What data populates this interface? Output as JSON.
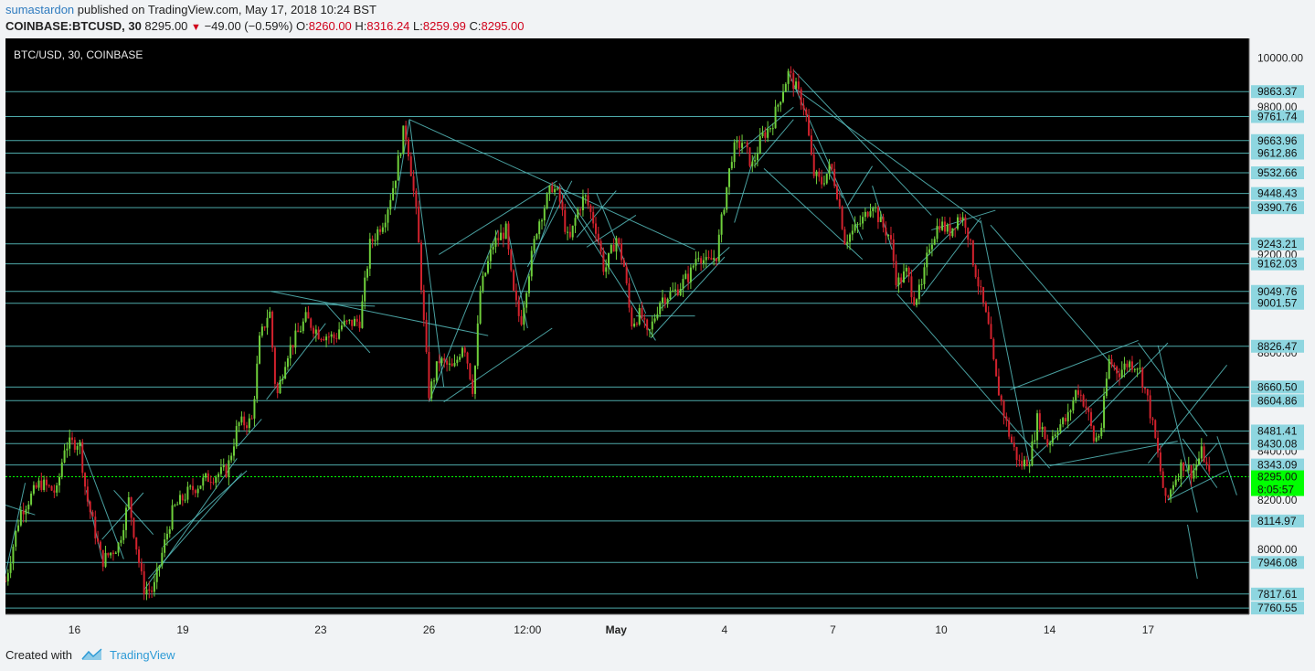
{
  "header": {
    "user": "sumastardon",
    "published_text": " published on TradingView.com, May 17, 2018 10:24 BST",
    "symbol": "COINBASE:BTCUSD, 30",
    "price": "8295.00",
    "change": "−49.00 (−0.59%)",
    "o_label": "O:",
    "o_value": "8260.00",
    "h_label": "H:",
    "h_value": "8316.24",
    "l_label": "L:",
    "l_value": "8259.99",
    "c_label": "C:",
    "c_value": "8295.00"
  },
  "footer": {
    "created_with": "Created with",
    "brand": "TradingView"
  },
  "colors": {
    "background": "#000000",
    "up": "#6fcf3b",
    "down": "#d2222d",
    "lines": "#5cc8c8",
    "last_price": "#00ff00",
    "label_bg": "#8ed6e0"
  },
  "chart_data": {
    "type": "candlestick",
    "title": "BTC/USD, 30, COINBASE",
    "ylim": [
      7700,
      10100
    ],
    "y_ticks": [
      "10000.00",
      "9800.00",
      "9200.00",
      "8800.00",
      "8400.00",
      "8200.00",
      "8000.00"
    ],
    "x_ticks": [
      {
        "t": 0.07,
        "label": "16"
      },
      {
        "t": 0.18,
        "label": "19"
      },
      {
        "t": 0.32,
        "label": "23"
      },
      {
        "t": 0.43,
        "label": "26"
      },
      {
        "t": 0.53,
        "label": "12:00"
      },
      {
        "t": 0.62,
        "label": "May"
      },
      {
        "t": 0.73,
        "label": "4"
      },
      {
        "t": 0.84,
        "label": "7"
      },
      {
        "t": 0.95,
        "label": "10"
      },
      {
        "t": 1.06,
        "label": "14"
      },
      {
        "t": 1.16,
        "label": "17"
      }
    ],
    "horizontal_levels": [
      "9863.37",
      "9761.74",
      "9663.96",
      "9612.86",
      "9532.66",
      "9448.43",
      "9390.76",
      "9243.21",
      "9162.03",
      "9049.76",
      "9001.57",
      "8826.47",
      "8660.50",
      "8604.86",
      "8481.41",
      "8430.08",
      "8343.09",
      "8114.97",
      "7946.08",
      "7817.61",
      "7760.55"
    ],
    "last_price": "8295.00",
    "countdown": "8:05:57",
    "price_path": [
      [
        0.0,
        7870
      ],
      [
        0.015,
        8150
      ],
      [
        0.035,
        8270
      ],
      [
        0.052,
        8230
      ],
      [
        0.06,
        8420
      ],
      [
        0.075,
        8440
      ],
      [
        0.082,
        8220
      ],
      [
        0.098,
        7950
      ],
      [
        0.115,
        8020
      ],
      [
        0.125,
        8200
      ],
      [
        0.14,
        7840
      ],
      [
        0.15,
        7830
      ],
      [
        0.16,
        8000
      ],
      [
        0.17,
        8160
      ],
      [
        0.185,
        8230
      ],
      [
        0.205,
        8290
      ],
      [
        0.225,
        8320
      ],
      [
        0.236,
        8510
      ],
      [
        0.25,
        8520
      ],
      [
        0.258,
        8850
      ],
      [
        0.268,
        8980
      ],
      [
        0.275,
        8610
      ],
      [
        0.285,
        8790
      ],
      [
        0.305,
        8940
      ],
      [
        0.318,
        8880
      ],
      [
        0.335,
        8860
      ],
      [
        0.34,
        8910
      ],
      [
        0.36,
        8930
      ],
      [
        0.37,
        9240
      ],
      [
        0.385,
        9350
      ],
      [
        0.395,
        9500
      ],
      [
        0.405,
        9720
      ],
      [
        0.41,
        9600
      ],
      [
        0.418,
        9330
      ],
      [
        0.425,
        8900
      ],
      [
        0.43,
        8630
      ],
      [
        0.44,
        8770
      ],
      [
        0.455,
        8730
      ],
      [
        0.465,
        8850
      ],
      [
        0.475,
        8640
      ],
      [
        0.482,
        9050
      ],
      [
        0.495,
        9240
      ],
      [
        0.508,
        9300
      ],
      [
        0.515,
        9050
      ],
      [
        0.523,
        8920
      ],
      [
        0.53,
        9100
      ],
      [
        0.54,
        9320
      ],
      [
        0.555,
        9480
      ],
      [
        0.562,
        9430
      ],
      [
        0.572,
        9240
      ],
      [
        0.58,
        9370
      ],
      [
        0.588,
        9440
      ],
      [
        0.6,
        9300
      ],
      [
        0.608,
        9130
      ],
      [
        0.62,
        9270
      ],
      [
        0.628,
        9150
      ],
      [
        0.635,
        8920
      ],
      [
        0.645,
        8960
      ],
      [
        0.652,
        8860
      ],
      [
        0.665,
        9020
      ],
      [
        0.68,
        9050
      ],
      [
        0.695,
        9120
      ],
      [
        0.703,
        9210
      ],
      [
        0.712,
        9160
      ],
      [
        0.722,
        9200
      ],
      [
        0.73,
        9420
      ],
      [
        0.738,
        9620
      ],
      [
        0.748,
        9660
      ],
      [
        0.758,
        9560
      ],
      [
        0.768,
        9680
      ],
      [
        0.778,
        9730
      ],
      [
        0.788,
        9860
      ],
      [
        0.795,
        9940
      ],
      [
        0.802,
        9880
      ],
      [
        0.812,
        9790
      ],
      [
        0.82,
        9530
      ],
      [
        0.828,
        9490
      ],
      [
        0.838,
        9560
      ],
      [
        0.845,
        9440
      ],
      [
        0.852,
        9260
      ],
      [
        0.862,
        9300
      ],
      [
        0.872,
        9350
      ],
      [
        0.88,
        9420
      ],
      [
        0.888,
        9330
      ],
      [
        0.898,
        9270
      ],
      [
        0.905,
        9080
      ],
      [
        0.915,
        9130
      ],
      [
        0.922,
        9020
      ],
      [
        0.93,
        9060
      ],
      [
        0.938,
        9240
      ],
      [
        0.948,
        9330
      ],
      [
        0.958,
        9290
      ],
      [
        0.968,
        9360
      ],
      [
        0.975,
        9330
      ],
      [
        0.982,
        9180
      ],
      [
        0.99,
        9040
      ],
      [
        0.998,
        8900
      ],
      [
        1.005,
        8700
      ],
      [
        1.012,
        8580
      ],
      [
        1.02,
        8450
      ],
      [
        1.03,
        8340
      ],
      [
        1.04,
        8370
      ],
      [
        1.048,
        8540
      ],
      [
        1.058,
        8430
      ],
      [
        1.068,
        8500
      ],
      [
        1.078,
        8530
      ],
      [
        1.088,
        8660
      ],
      [
        1.098,
        8570
      ],
      [
        1.105,
        8440
      ],
      [
        1.112,
        8480
      ],
      [
        1.12,
        8770
      ],
      [
        1.13,
        8720
      ],
      [
        1.14,
        8760
      ],
      [
        1.15,
        8750
      ],
      [
        1.16,
        8600
      ],
      [
        1.168,
        8430
      ],
      [
        1.178,
        8180
      ],
      [
        1.185,
        8270
      ],
      [
        1.195,
        8350
      ],
      [
        1.205,
        8310
      ],
      [
        1.215,
        8400
      ],
      [
        1.222,
        8295
      ]
    ]
  }
}
